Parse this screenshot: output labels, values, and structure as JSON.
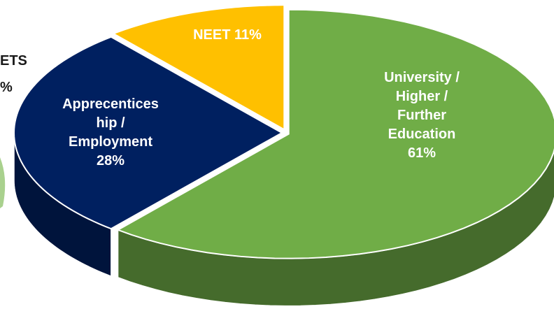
{
  "chart_data": {
    "type": "pie3d",
    "categories": [
      "University / Higher / Further Education",
      "Apprecentices hip / Employment",
      "NEET"
    ],
    "values": [
      61,
      28,
      11
    ],
    "value_labels": [
      "61%",
      "28%",
      "11%"
    ],
    "colors": [
      "#70ad47",
      "#002060",
      "#ffc000"
    ],
    "annotations": [
      "ETS",
      "%"
    ]
  }
}
